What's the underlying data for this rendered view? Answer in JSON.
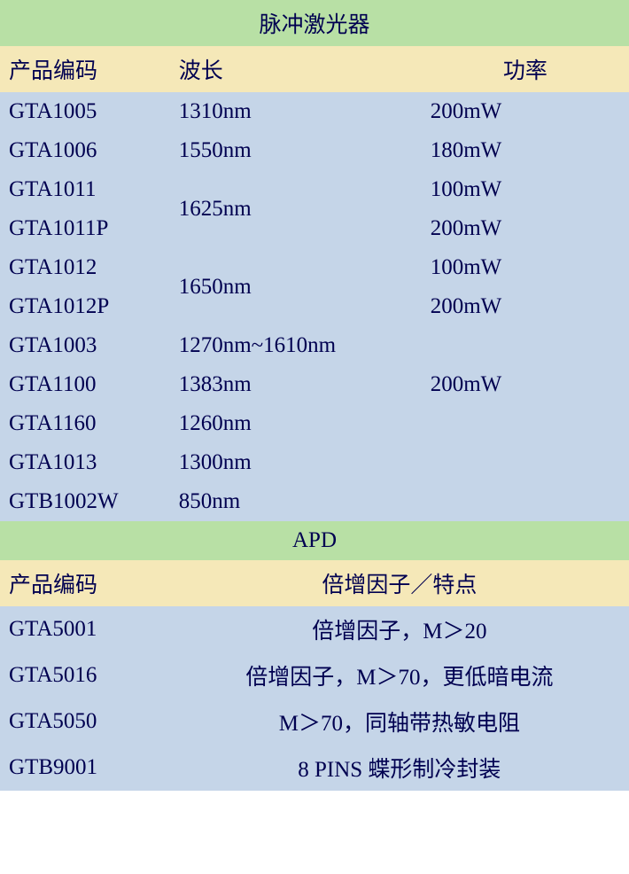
{
  "colors": {
    "section_header_bg": "#b8e0a5",
    "col_header_bg": "#f5e8b8",
    "data_row_bg": "#c5d5e8",
    "text_color": "#000050"
  },
  "section1": {
    "title": "脉冲激光器",
    "headers": {
      "code": "产品编码",
      "wavelength": "波长",
      "power": "功率"
    },
    "rows": [
      {
        "code": "GTA1005",
        "wavelength": "1310nm",
        "power": "200mW"
      },
      {
        "code": "GTA1006",
        "wavelength": "1550nm",
        "power": "180mW"
      },
      {
        "code": "GTA1011",
        "wavelength": "1625nm",
        "power": "100mW",
        "wavelength_rowspan": 2
      },
      {
        "code": "GTA1011P",
        "power": "200mW"
      },
      {
        "code": "GTA1012",
        "wavelength": "1650nm",
        "power": "100mW",
        "wavelength_rowspan": 2
      },
      {
        "code": "GTA1012P",
        "power": "200mW"
      },
      {
        "code": "GTA1003",
        "wavelength": "1270nm~1610nm",
        "power": ""
      },
      {
        "code": "GTA1100",
        "wavelength": "1383nm",
        "power": "200mW"
      },
      {
        "code": "GTA1160",
        "wavelength": "1260nm",
        "power": ""
      },
      {
        "code": "GTA1013",
        "wavelength": "1300nm",
        "power": ""
      },
      {
        "code": "GTB1002W",
        "wavelength": "850nm",
        "power": ""
      }
    ]
  },
  "section2": {
    "title": "APD",
    "headers": {
      "code": "产品编码",
      "feature": "倍增因子／特点"
    },
    "rows": [
      {
        "code": "GTA5001",
        "feature": "倍增因子，M＞20"
      },
      {
        "code": "GTA5016",
        "feature": "倍增因子，M＞70，更低暗电流"
      },
      {
        "code": "GTA5050",
        "feature": "M＞70，同轴带热敏电阻"
      },
      {
        "code": "GTB9001",
        "feature": "8 PINS 蝶形制冷封装"
      }
    ]
  }
}
